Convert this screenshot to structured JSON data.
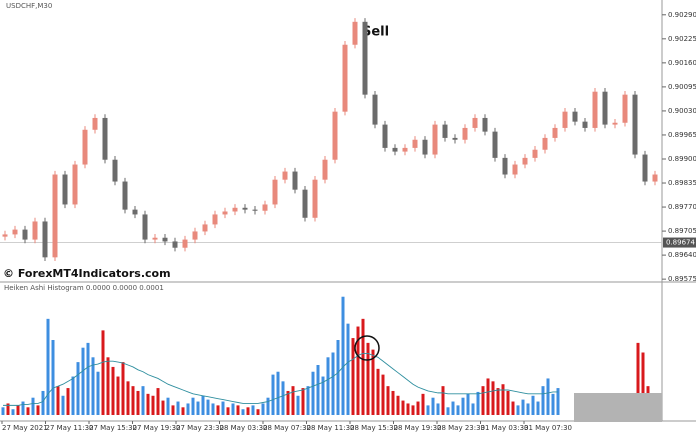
{
  "chart_data": [
    {
      "type": "candlestick",
      "title": "USDCHF,M30",
      "annotation": "Sell",
      "watermark": "© ForexMT4Indicators.com",
      "up_color": "#e8897c",
      "down_color": "#6b6b6b",
      "open": [
        0.8969,
        0.89696,
        0.89709,
        0.89682,
        0.89731,
        0.89634,
        0.89858,
        0.89777,
        0.89885,
        0.89979,
        0.90011,
        0.89898,
        0.89839,
        0.89763,
        0.8975,
        0.89682,
        0.89687,
        0.89677,
        0.8966,
        0.89682,
        0.89704,
        0.89723,
        0.8975,
        0.89758,
        0.89768,
        0.89763,
        0.8976,
        0.89777,
        0.89844,
        0.89866,
        0.89817,
        0.89741,
        0.89844,
        0.89898,
        0.90028,
        0.90209,
        0.90271,
        0.90074,
        0.89993,
        0.8993,
        0.8992,
        0.8993,
        0.89952,
        0.89912,
        0.89993,
        0.89957,
        0.89952,
        0.89984,
        0.90011,
        0.89974,
        0.89903,
        0.89858,
        0.89885,
        0.89903,
        0.89925,
        0.89957,
        0.89984,
        0.90028,
        0.90001,
        0.89984,
        0.90082,
        0.89993,
        0.89998,
        0.90074,
        0.89912,
        0.89839
      ],
      "high": [
        0.89706,
        0.89719,
        0.89719,
        0.89741,
        0.89741,
        0.89868,
        0.89868,
        0.89895,
        0.89989,
        0.90021,
        0.90021,
        0.89908,
        0.89849,
        0.89773,
        0.8976,
        0.89697,
        0.89697,
        0.89687,
        0.89692,
        0.89714,
        0.89733,
        0.8976,
        0.89768,
        0.89778,
        0.89778,
        0.89773,
        0.89787,
        0.89854,
        0.89876,
        0.89876,
        0.89827,
        0.89854,
        0.89908,
        0.90038,
        0.90219,
        0.90281,
        0.90281,
        0.90084,
        0.90003,
        0.8994,
        0.8994,
        0.89962,
        0.89962,
        0.90003,
        0.90003,
        0.89967,
        0.89994,
        0.90021,
        0.90021,
        0.89984,
        0.89913,
        0.89895,
        0.89913,
        0.89935,
        0.89967,
        0.89994,
        0.90038,
        0.90038,
        0.90011,
        0.90092,
        0.90092,
        0.90008,
        0.90084,
        0.90084,
        0.89922,
        0.89868
      ],
      "low": [
        0.8968,
        0.89686,
        0.89672,
        0.89672,
        0.89624,
        0.89624,
        0.89767,
        0.89767,
        0.89875,
        0.89969,
        0.89888,
        0.89829,
        0.89753,
        0.8974,
        0.89672,
        0.89672,
        0.89667,
        0.8965,
        0.8965,
        0.89672,
        0.89694,
        0.89713,
        0.8974,
        0.89748,
        0.89753,
        0.8975,
        0.8975,
        0.89767,
        0.89834,
        0.89807,
        0.89731,
        0.89731,
        0.89834,
        0.89888,
        0.90018,
        0.90199,
        0.90064,
        0.89983,
        0.8992,
        0.8991,
        0.8991,
        0.8992,
        0.89902,
        0.89902,
        0.89947,
        0.89942,
        0.89942,
        0.89974,
        0.89964,
        0.89893,
        0.89848,
        0.89848,
        0.89875,
        0.89893,
        0.89915,
        0.89947,
        0.89974,
        0.89991,
        0.89974,
        0.89974,
        0.89983,
        0.89983,
        0.89988,
        0.89902,
        0.89829,
        0.89829
      ],
      "close": [
        0.89696,
        0.89709,
        0.89682,
        0.89731,
        0.89634,
        0.89858,
        0.89777,
        0.89885,
        0.89979,
        0.90011,
        0.89898,
        0.89839,
        0.89763,
        0.8975,
        0.89682,
        0.89687,
        0.89677,
        0.8966,
        0.89682,
        0.89704,
        0.89723,
        0.8975,
        0.89758,
        0.89768,
        0.89763,
        0.8976,
        0.89777,
        0.89844,
        0.89866,
        0.89817,
        0.89741,
        0.89844,
        0.89898,
        0.90028,
        0.90209,
        0.90271,
        0.90074,
        0.89993,
        0.8993,
        0.8992,
        0.8993,
        0.89952,
        0.89912,
        0.89993,
        0.89957,
        0.89952,
        0.89984,
        0.90011,
        0.89974,
        0.89903,
        0.89858,
        0.89885,
        0.89903,
        0.89925,
        0.89957,
        0.89984,
        0.90028,
        0.90001,
        0.89984,
        0.90082,
        0.89993,
        0.89998,
        0.90074,
        0.89912,
        0.89839,
        0.89858
      ],
      "ylim": [
        0.8957,
        0.9033
      ],
      "yticks": [
        {
          "value": 0.9029,
          "label": "0.90290"
        },
        {
          "value": 0.90225,
          "label": "0.90225"
        },
        {
          "value": 0.9016,
          "label": "0.90160"
        },
        {
          "value": 0.90095,
          "label": "0.90095"
        },
        {
          "value": 0.9003,
          "label": "0.90030"
        },
        {
          "value": 0.89965,
          "label": "0.89965"
        },
        {
          "value": 0.899,
          "label": "0.89900"
        },
        {
          "value": 0.89835,
          "label": "0.89835"
        },
        {
          "value": 0.8977,
          "label": "0.89770"
        },
        {
          "value": 0.89705,
          "label": "0.89705"
        },
        {
          "value": 0.8964,
          "label": "0.89640"
        },
        {
          "value": 0.89575,
          "label": "0.89575"
        }
      ],
      "last_price": {
        "value": 0.89674,
        "label": "0.89674"
      }
    },
    {
      "type": "bar",
      "title": "Heiken Ashi Histogram 0.0000 0.0000 0.0001",
      "values": [
        8,
        12,
        6,
        10,
        14,
        8,
        18,
        10,
        25,
        100,
        78,
        30,
        20,
        28,
        40,
        55,
        70,
        75,
        60,
        45,
        88,
        60,
        50,
        40,
        55,
        35,
        30,
        25,
        30,
        22,
        20,
        28,
        15,
        18,
        10,
        14,
        8,
        12,
        18,
        14,
        20,
        16,
        12,
        10,
        14,
        8,
        12,
        10,
        6,
        8,
        10,
        6,
        12,
        18,
        42,
        45,
        35,
        25,
        30,
        20,
        28,
        30,
        45,
        52,
        40,
        60,
        65,
        78,
        123,
        95,
        80,
        92,
        100,
        75,
        68,
        48,
        42,
        30,
        25,
        20,
        15,
        12,
        10,
        14,
        22,
        10,
        18,
        12,
        30,
        8,
        14,
        10,
        18,
        22,
        12,
        24,
        30,
        38,
        35,
        28,
        32,
        25,
        14,
        10,
        16,
        12,
        20,
        14,
        30,
        38,
        22,
        28,
        null,
        null,
        null,
        null,
        null,
        null,
        null,
        18,
        null,
        null,
        null,
        null,
        null,
        null,
        null,
        75,
        65,
        30,
        18,
        10
      ],
      "colors": [
        "#3e8ee0",
        "#d8191c",
        "#3e8ee0",
        "#d8191c",
        "#3e8ee0",
        "#d8191c",
        "#3e8ee0",
        "#d8191c",
        "#3e8ee0",
        "#3e8ee0",
        "#3e8ee0",
        "#d8191c",
        "#3e8ee0",
        "#d8191c",
        "#3e8ee0",
        "#3e8ee0",
        "#3e8ee0",
        "#3e8ee0",
        "#3e8ee0",
        "#3e8ee0",
        "#d8191c",
        "#d8191c",
        "#d8191c",
        "#d8191c",
        "#d8191c",
        "#d8191c",
        "#d8191c",
        "#d8191c",
        "#3e8ee0",
        "#d8191c",
        "#d8191c",
        "#d8191c",
        "#d8191c",
        "#3e8ee0",
        "#d8191c",
        "#3e8ee0",
        "#d8191c",
        "#3e8ee0",
        "#3e8ee0",
        "#3e8ee0",
        "#3e8ee0",
        "#3e8ee0",
        "#3e8ee0",
        "#d8191c",
        "#3e8ee0",
        "#d8191c",
        "#3e8ee0",
        "#d8191c",
        "#3e8ee0",
        "#d8191c",
        "#3e8ee0",
        "#d8191c",
        "#3e8ee0",
        "#3e8ee0",
        "#3e8ee0",
        "#3e8ee0",
        "#3e8ee0",
        "#d8191c",
        "#d8191c",
        "#3e8ee0",
        "#d8191c",
        "#3e8ee0",
        "#3e8ee0",
        "#3e8ee0",
        "#3e8ee0",
        "#3e8ee0",
        "#3e8ee0",
        "#3e8ee0",
        "#3e8ee0",
        "#3e8ee0",
        "#d8191c",
        "#d8191c",
        "#d8191c",
        "#d8191c",
        "#d8191c",
        "#d8191c",
        "#d8191c",
        "#d8191c",
        "#d8191c",
        "#d8191c",
        "#d8191c",
        "#d8191c",
        "#d8191c",
        "#d8191c",
        "#d8191c",
        "#3e8ee0",
        "#3e8ee0",
        "#3e8ee0",
        "#d8191c",
        "#3e8ee0",
        "#3e8ee0",
        "#3e8ee0",
        "#3e8ee0",
        "#3e8ee0",
        "#3e8ee0",
        "#3e8ee0",
        "#d8191c",
        "#d8191c",
        "#d8191c",
        "#d8191c",
        "#d8191c",
        "#d8191c",
        "#d8191c",
        "#3e8ee0",
        "#3e8ee0",
        "#3e8ee0",
        "#3e8ee0",
        "#3e8ee0",
        "#3e8ee0",
        "#3e8ee0",
        "#3e8ee0",
        "#3e8ee0",
        null,
        null,
        null,
        null,
        null,
        null,
        null,
        "#3e8ee0",
        null,
        null,
        null,
        null,
        null,
        null,
        null,
        "#d8191c",
        "#d8191c",
        "#d8191c",
        "#d8191c",
        "#d8191c"
      ],
      "ma": {
        "color": "#2f8f9f",
        "values": [
          10,
          10,
          10,
          10,
          11,
          11,
          12,
          12,
          14,
          22,
          28,
          30,
          32,
          35,
          38,
          42,
          46,
          50,
          52,
          53,
          55,
          56,
          56,
          55,
          54,
          52,
          50,
          47,
          45,
          42,
          40,
          38,
          35,
          32,
          30,
          28,
          26,
          24,
          22,
          21,
          20,
          19,
          18,
          17,
          16,
          15,
          14,
          13,
          12,
          12,
          12,
          12,
          13,
          14,
          16,
          18,
          20,
          22,
          24,
          25,
          26,
          28,
          30,
          32,
          34,
          37,
          40,
          44,
          50,
          55,
          58,
          62,
          64,
          64,
          62,
          60,
          56,
          52,
          48,
          44,
          40,
          36,
          32,
          29,
          27,
          25,
          24,
          23,
          23,
          22,
          22,
          22,
          22,
          22,
          22,
          22,
          23,
          24,
          25,
          26,
          26,
          26,
          25,
          24,
          23,
          22,
          22,
          22,
          22,
          23,
          24,
          24,
          null,
          null,
          null,
          null,
          null,
          null,
          null,
          null,
          null,
          null,
          null,
          null,
          null,
          null,
          null,
          null,
          null,
          null,
          null,
          null
        ]
      },
      "ylim": [
        0,
        130
      ],
      "x_labels": [
        "27 May 2021",
        "27 May 11:30",
        "27 May 15:30",
        "27 May 19:30",
        "27 May 23:30",
        "28 May 03:30",
        "28 May 07:30",
        "28 May 11:30",
        "28 May 15:30",
        "28 May 19:30",
        "28 May 23:30",
        "31 May 03:30",
        "31 May 07:30"
      ]
    }
  ]
}
